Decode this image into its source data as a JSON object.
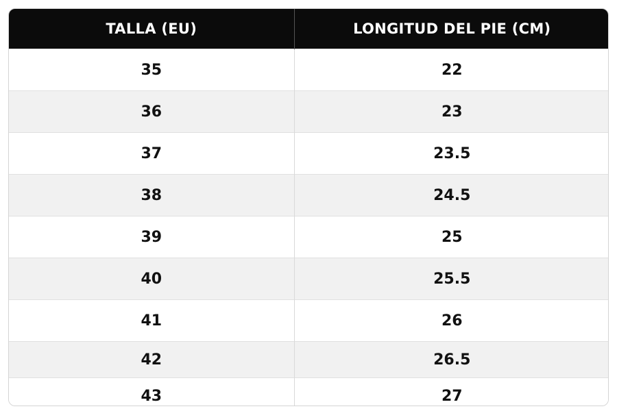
{
  "table": {
    "headers": [
      "TALLA (EU)",
      "LONGITUD DEL PIE (CM)"
    ],
    "rows": [
      [
        "35",
        "22"
      ],
      [
        "36",
        "23"
      ],
      [
        "37",
        "23.5"
      ],
      [
        "38",
        "24.5"
      ],
      [
        "39",
        "25"
      ],
      [
        "40",
        "25.5"
      ],
      [
        "41",
        "26"
      ],
      [
        "42",
        "26.5"
      ],
      [
        "43",
        "27"
      ]
    ]
  }
}
